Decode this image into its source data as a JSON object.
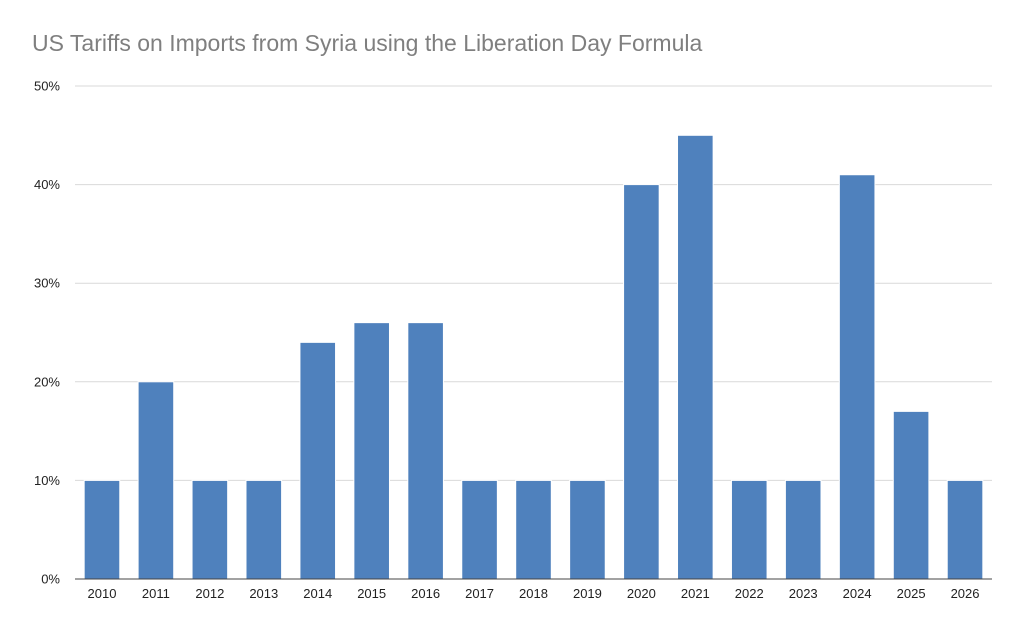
{
  "chart_data": {
    "type": "bar",
    "title": "US Tariffs on Imports from Syria using the Liberation Day Formula",
    "xlabel": "",
    "ylabel": "",
    "categories": [
      "2010",
      "2011",
      "2012",
      "2013",
      "2014",
      "2015",
      "2016",
      "2017",
      "2018",
      "2019",
      "2020",
      "2021",
      "2022",
      "2023",
      "2024",
      "2025",
      "2026"
    ],
    "values": [
      10,
      20,
      10,
      10,
      24,
      26,
      26,
      10,
      10,
      10,
      40,
      45,
      10,
      10,
      41,
      17,
      10
    ],
    "ylim": [
      0,
      50
    ],
    "yticks": [
      0,
      10,
      20,
      30,
      40,
      50
    ],
    "ytick_labels": [
      "0%",
      "10%",
      "20%",
      "30%",
      "40%",
      "50%"
    ],
    "grid": true,
    "legend": "none",
    "bar_color": "#4f81bd"
  }
}
